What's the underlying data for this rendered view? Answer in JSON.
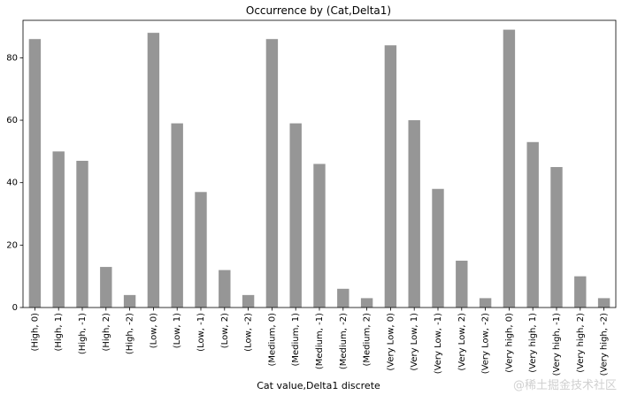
{
  "chart_data": {
    "type": "bar",
    "title": "Occurrence by (Cat,Delta1)",
    "xlabel": "Cat value,Delta1 discrete",
    "ylabel": "",
    "ylim": [
      0,
      92
    ],
    "yticks": [
      0,
      20,
      40,
      60,
      80
    ],
    "grid": false,
    "legend": "none",
    "bar_color": "#969696",
    "categories": [
      "(High, 0)",
      "(High, 1)",
      "(High, -1)",
      "(High, 2)",
      "(High, -2)",
      "(Low, 0)",
      "(Low, 1)",
      "(Low, -1)",
      "(Low, 2)",
      "(Low, -2)",
      "(Medium, 0)",
      "(Medium, 1)",
      "(Medium, -1)",
      "(Medium, -2)",
      "(Medium, 2)",
      "(Very Low, 0)",
      "(Very Low, 1)",
      "(Very Low, -1)",
      "(Very Low, 2)",
      "(Very Low, -2)",
      "(Very high, 0)",
      "(Very high, 1)",
      "(Very high, -1)",
      "(Very high, 2)",
      "(Very high, -2)"
    ],
    "values": [
      86,
      50,
      47,
      13,
      4,
      88,
      59,
      37,
      12,
      4,
      86,
      59,
      46,
      6,
      3,
      84,
      60,
      38,
      15,
      3,
      89,
      53,
      45,
      10,
      3
    ]
  },
  "watermark": "@稀土掘金技术社区"
}
